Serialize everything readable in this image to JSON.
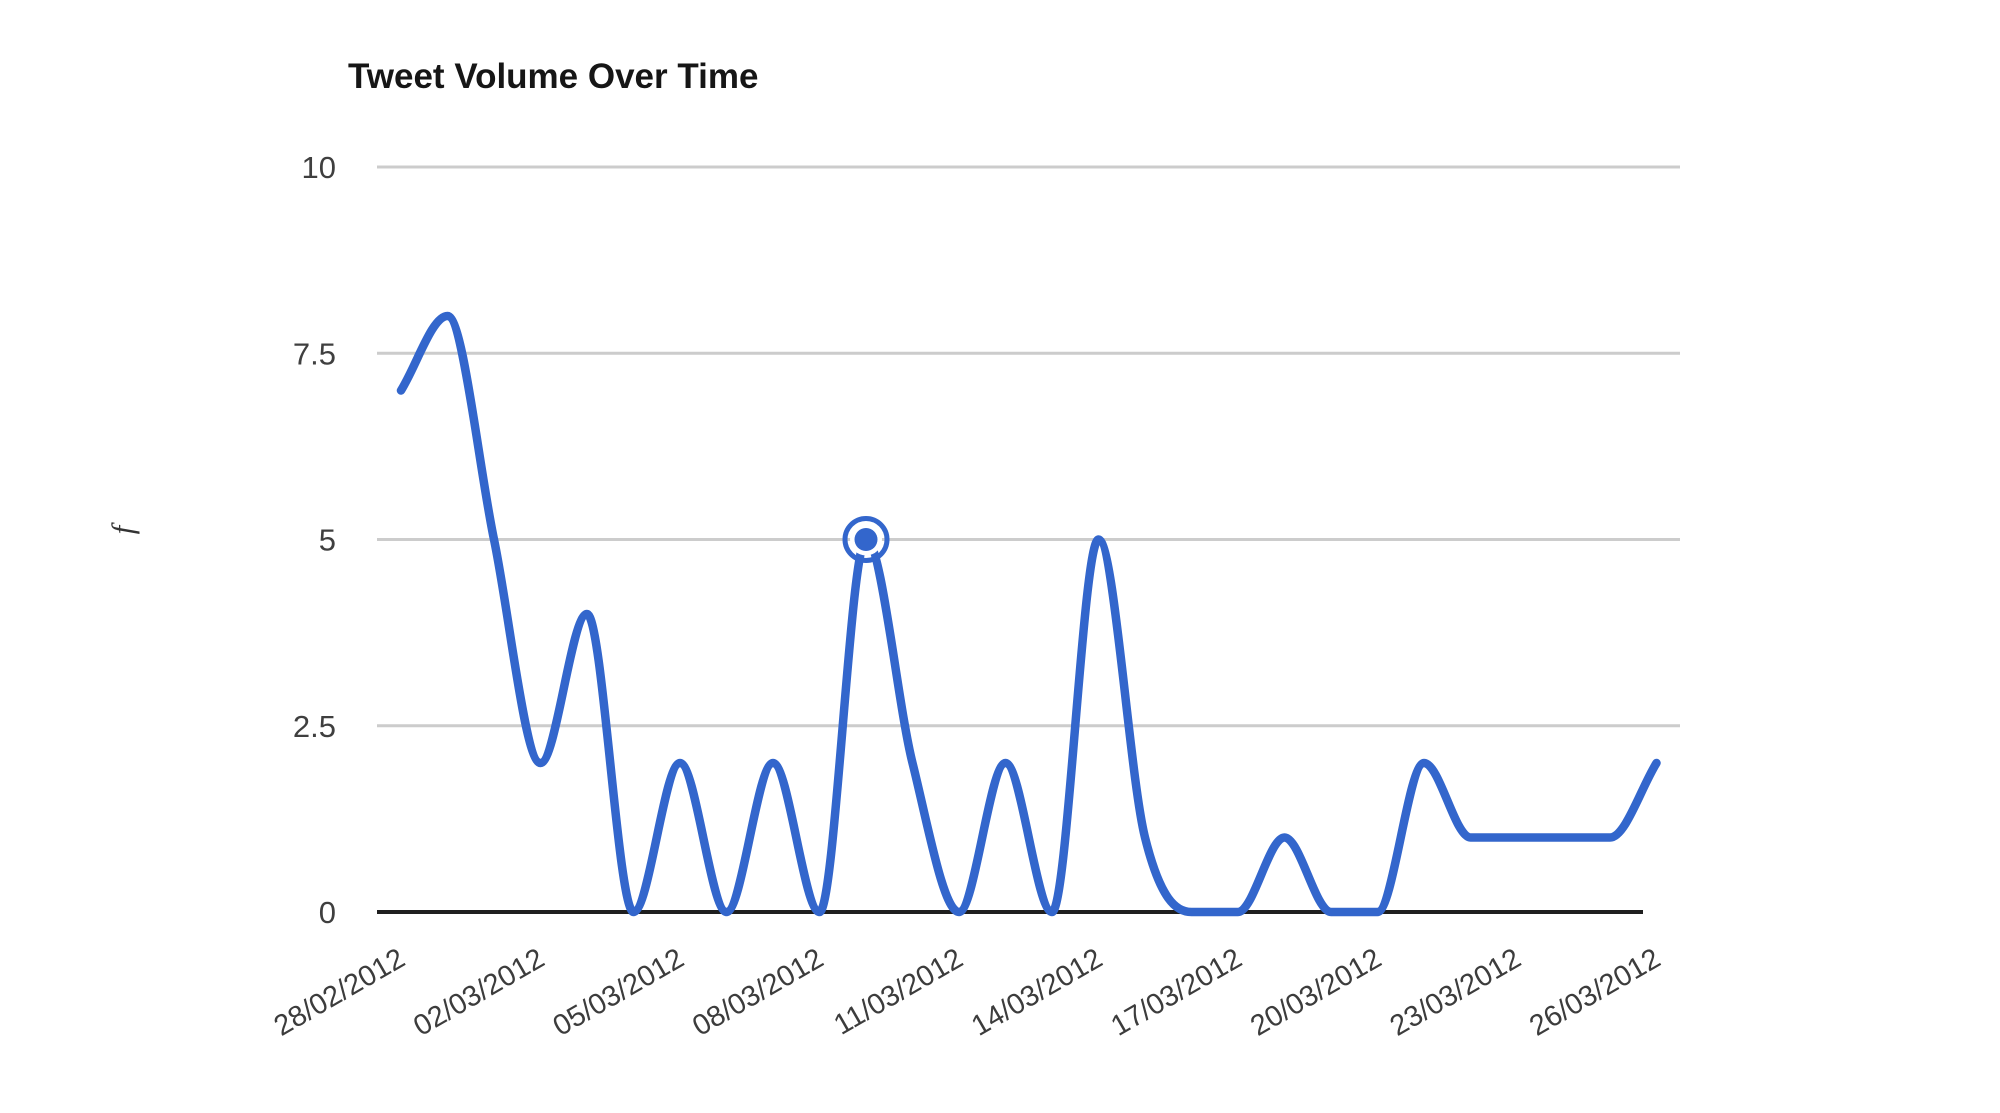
{
  "chart_data": {
    "type": "line",
    "title": "Tweet Volume Over Time",
    "xlabel": "",
    "ylabel": "f",
    "ylim": [
      0,
      10
    ],
    "grid": "horizontal",
    "legend": "none",
    "smoothing": "curved",
    "y_tick_values": [
      0,
      2.5,
      5,
      7.5,
      10
    ],
    "y_tick_labels": [
      "0",
      "2.5",
      "5",
      "7.5",
      "10"
    ],
    "x_tick_labels": [
      "28/02/2012",
      "02/03/2012",
      "05/03/2012",
      "08/03/2012",
      "11/03/2012",
      "14/03/2012",
      "17/03/2012",
      "20/03/2012",
      "23/03/2012",
      "26/03/2012"
    ],
    "x_tick_day_indices": [
      0,
      3,
      6,
      9,
      12,
      15,
      18,
      21,
      24,
      27
    ],
    "x_day_indices": [
      0,
      1,
      2,
      3,
      4,
      5,
      6,
      7,
      8,
      9,
      10,
      11,
      12,
      13,
      14,
      15,
      16,
      17,
      18,
      19,
      20,
      21,
      22,
      23,
      24,
      25,
      26,
      27
    ],
    "values": [
      7,
      8,
      5,
      2,
      4,
      0,
      2,
      0,
      2,
      0,
      5,
      2,
      0,
      2,
      0,
      5,
      1,
      0,
      0,
      1,
      0,
      0,
      2,
      1,
      1,
      1,
      1,
      2
    ],
    "highlighted_point": {
      "day_index": 10,
      "value": 5
    },
    "colors": {
      "line": "#3366cc",
      "marker_fill": "#3366cc",
      "marker_ring": "#3366cc",
      "marker_gap": "#ffffff",
      "gridline": "#cccccc",
      "axis_line": "#1f1f1f",
      "tick_text": "#3c3c3c",
      "title_text": "#161616"
    }
  }
}
